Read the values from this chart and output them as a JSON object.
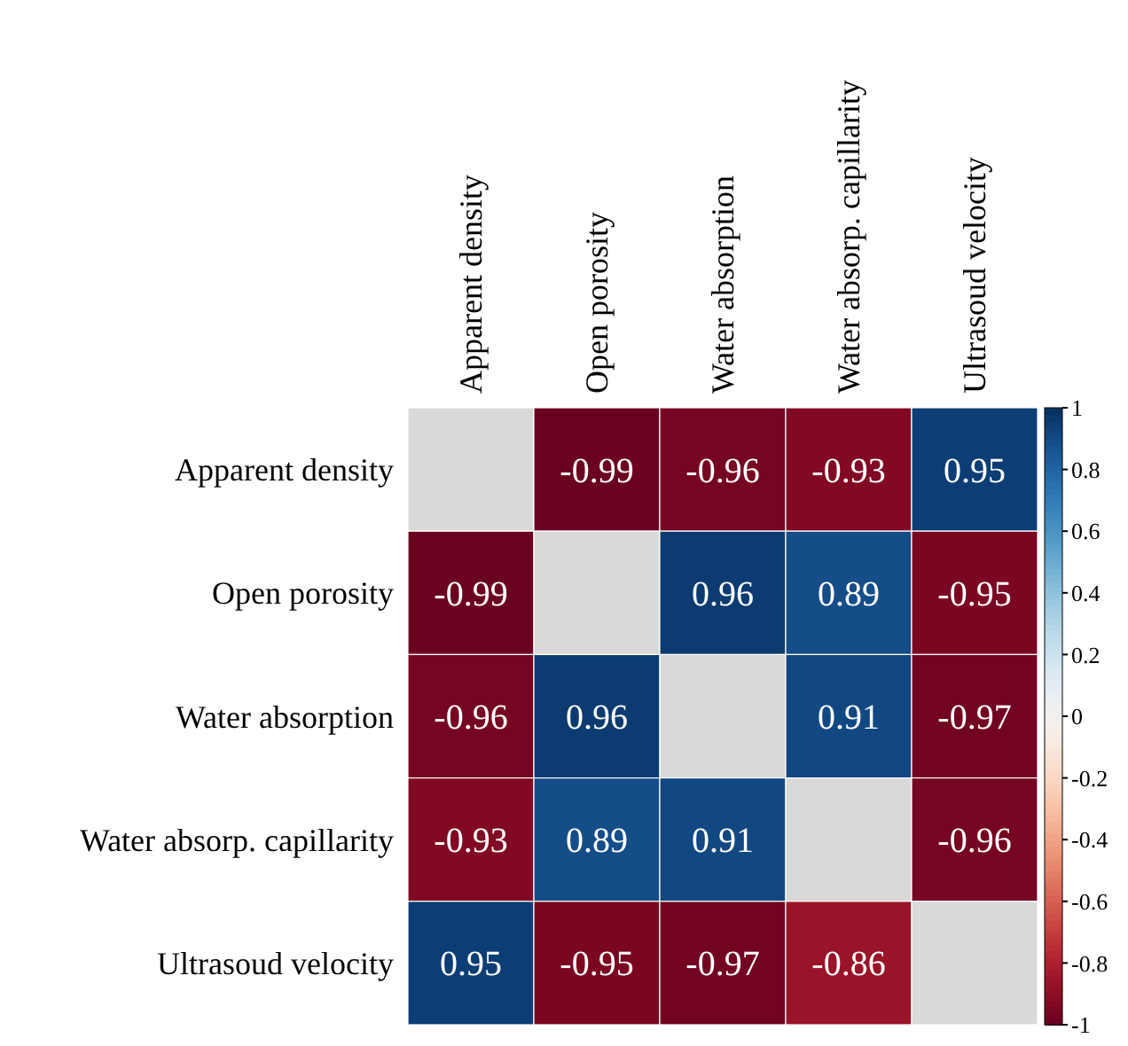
{
  "chart_data": {
    "type": "heatmap",
    "categories": [
      "Apparent density",
      "Open porosity",
      "Water absorption",
      "Water absorp. capillarity",
      "Ultrasoud velocity"
    ],
    "y_categories": [
      "Apparent density",
      "Open porosity",
      "Water absorption",
      "Water absorp. capillarity",
      "Ultrasoud velocity"
    ],
    "cells": [
      [
        null,
        -0.99,
        -0.96,
        -0.93,
        0.95
      ],
      [
        -0.99,
        null,
        0.96,
        0.89,
        -0.95
      ],
      [
        -0.96,
        0.96,
        null,
        0.91,
        -0.97
      ],
      [
        -0.93,
        0.89,
        0.91,
        null,
        -0.96
      ],
      [
        0.95,
        -0.95,
        -0.97,
        -0.86,
        null
      ]
    ],
    "clim": [
      -1,
      1
    ],
    "cticks": [
      -1,
      -0.8,
      -0.6,
      -0.4,
      -0.2,
      0,
      0.2,
      0.4,
      0.6,
      0.8,
      1
    ],
    "data_labels": true
  }
}
